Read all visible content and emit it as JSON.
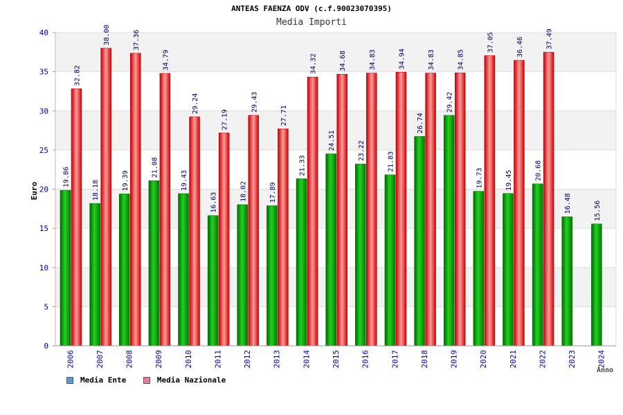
{
  "chart_data": {
    "type": "bar",
    "title": "ANTEAS FAENZA ODV (c.f.90023070395)",
    "subtitle": "Media Importi",
    "xlabel": "Anno",
    "ylabel": "Euro",
    "ylim": [
      0,
      40
    ],
    "yticks": [
      0,
      5,
      10,
      15,
      20,
      25,
      30,
      35,
      40
    ],
    "categories": [
      "2006",
      "2007",
      "2008",
      "2009",
      "2010",
      "2011",
      "2012",
      "2013",
      "2014",
      "2015",
      "2016",
      "2017",
      "2018",
      "2019",
      "2020",
      "2021",
      "2022",
      "2023",
      "2024"
    ],
    "series": [
      {
        "name": "Media Ente",
        "color": "#00a000",
        "legend_color": "#5b9bd5",
        "values": [
          19.86,
          18.18,
          19.39,
          21.08,
          19.43,
          16.63,
          18.02,
          17.89,
          21.33,
          24.51,
          23.22,
          21.83,
          26.74,
          29.42,
          19.73,
          19.45,
          20.68,
          16.48,
          15.56
        ],
        "labels": [
          "19.86",
          "18.18",
          "19.39",
          "21.08",
          "19.43",
          "16.63",
          "18.02",
          "17.89",
          "21.33",
          "24.51",
          "23.22",
          "21.83",
          "26.74",
          "29.42",
          "19.73",
          "19.45",
          "20.68",
          "16.48",
          "15.56"
        ]
      },
      {
        "name": "Media Nazionale",
        "color": "#e00000",
        "legend_color": "#e87ba0",
        "values": [
          32.82,
          38.0,
          37.36,
          34.79,
          29.24,
          27.19,
          29.43,
          27.71,
          34.32,
          34.68,
          34.83,
          34.94,
          34.83,
          34.85,
          37.05,
          36.46,
          37.49,
          null,
          null
        ],
        "labels": [
          "32.82",
          "38.00",
          "37.36",
          "34.79",
          "29.24",
          "27.19",
          "29.43",
          "27.71",
          "34.32",
          "34.68",
          "34.83",
          "34.94",
          "34.83",
          "34.85",
          "37.05",
          "36.46",
          "37.49",
          "",
          ""
        ]
      }
    ],
    "grid": true,
    "legend_position": "bottom-left"
  }
}
